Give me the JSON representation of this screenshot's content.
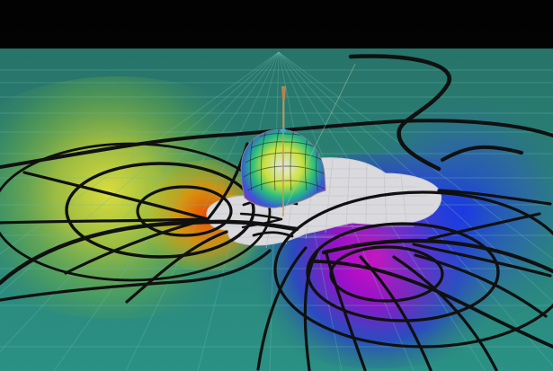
{
  "scene": {
    "description_free": true,
    "colors": {
      "background": "#000000",
      "floor_base": "#2f8f80",
      "floor_grid": "#74c7bb",
      "warm_yellow": "#d9e02b",
      "warm_orange": "#ff6a00",
      "magenta": "#e015d8",
      "blue": "#2d39e2",
      "white_region": "#e8e8ec",
      "curve_black": "#101010",
      "axis_line": "#d6a15e",
      "marker_blue": "#3db4ff"
    },
    "icons": {
      "sphere": "sphere-icon",
      "marker": "marker-icon",
      "axis": "vertical-axis-icon"
    }
  }
}
